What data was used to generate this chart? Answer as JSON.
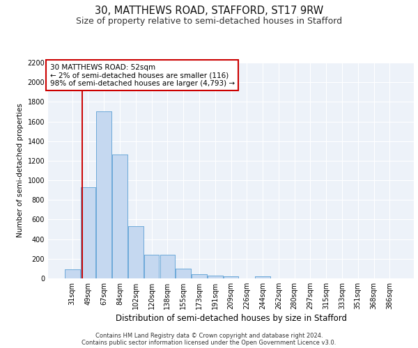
{
  "title1": "30, MATTHEWS ROAD, STAFFORD, ST17 9RW",
  "title2": "Size of property relative to semi-detached houses in Stafford",
  "xlabel": "Distribution of semi-detached houses by size in Stafford",
  "ylabel": "Number of semi-detached properties",
  "categories": [
    "31sqm",
    "49sqm",
    "67sqm",
    "84sqm",
    "102sqm",
    "120sqm",
    "138sqm",
    "155sqm",
    "173sqm",
    "191sqm",
    "209sqm",
    "226sqm",
    "244sqm",
    "262sqm",
    "280sqm",
    "297sqm",
    "315sqm",
    "333sqm",
    "351sqm",
    "368sqm",
    "386sqm"
  ],
  "values": [
    90,
    930,
    1700,
    1260,
    530,
    240,
    240,
    100,
    40,
    30,
    20,
    0,
    20,
    0,
    0,
    0,
    0,
    0,
    0,
    0,
    0
  ],
  "bar_color": "#c5d8f0",
  "bar_edge_color": "#5a9fd4",
  "vline_color": "#cc0000",
  "annotation_text": "30 MATTHEWS ROAD: 52sqm\n← 2% of semi-detached houses are smaller (116)\n98% of semi-detached houses are larger (4,793) →",
  "annotation_box_color": "#ffffff",
  "annotation_box_edge_color": "#cc0000",
  "ylim": [
    0,
    2200
  ],
  "yticks": [
    0,
    200,
    400,
    600,
    800,
    1000,
    1200,
    1400,
    1600,
    1800,
    2000,
    2200
  ],
  "footer1": "Contains HM Land Registry data © Crown copyright and database right 2024.",
  "footer2": "Contains public sector information licensed under the Open Government Licence v3.0.",
  "bg_color": "#edf2f9",
  "grid_color": "#ffffff",
  "title1_fontsize": 10.5,
  "title2_fontsize": 9,
  "xlabel_fontsize": 8.5,
  "ylabel_fontsize": 7.5,
  "tick_fontsize": 7,
  "footer_fontsize": 6,
  "annot_fontsize": 7.5
}
